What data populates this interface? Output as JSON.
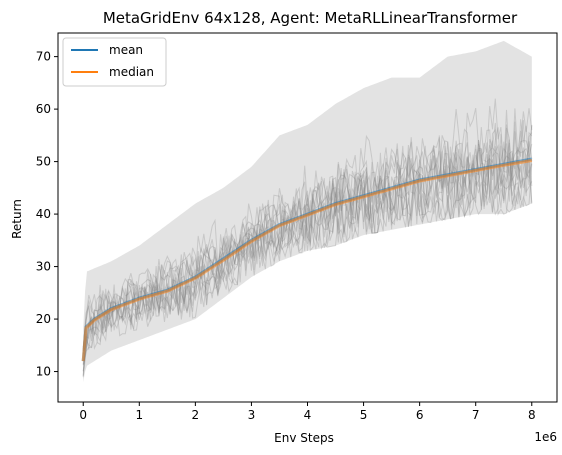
{
  "chart_data": {
    "type": "line",
    "title": "MetaGridEnv 64x128, Agent: MetaRLLinearTransformer",
    "xlabel": "Env Steps",
    "ylabel": "Return",
    "x_scale_label": "1e6",
    "xlim": [
      -0.45,
      8.45
    ],
    "ylim": [
      4.2,
      74.5
    ],
    "x_ticks": [
      0,
      1,
      2,
      3,
      4,
      5,
      6,
      7,
      8
    ],
    "x_tick_labels": [
      "0",
      "1",
      "2",
      "3",
      "4",
      "5",
      "6",
      "7",
      "8"
    ],
    "y_ticks": [
      10,
      20,
      30,
      40,
      50,
      60,
      70
    ],
    "y_tick_labels": [
      "10",
      "20",
      "30",
      "40",
      "50",
      "60",
      "70"
    ],
    "grid": false,
    "legend_position": "top-left",
    "background_band": {
      "name": "individual runs",
      "color": "#808080",
      "x": [
        0,
        0.05,
        0.5,
        1,
        1.5,
        2,
        2.5,
        3,
        3.5,
        4,
        4.5,
        5,
        5.5,
        6,
        6.5,
        7,
        7.5,
        8
      ],
      "low": [
        8,
        11,
        14,
        16,
        18,
        20,
        24,
        28,
        31,
        33,
        34,
        36,
        37,
        38,
        39,
        40,
        40,
        42
      ],
      "high": [
        18,
        29,
        31,
        34,
        38,
        42,
        45,
        49,
        55,
        57,
        61,
        64,
        66,
        66,
        70,
        71,
        73,
        70
      ]
    },
    "series": [
      {
        "name": "mean",
        "color": "#1f77b4",
        "x": [
          0,
          0.05,
          0.2,
          0.5,
          1,
          1.5,
          2,
          2.5,
          3,
          3.5,
          4,
          4.5,
          5,
          5.5,
          6,
          6.5,
          7,
          7.5,
          8
        ],
        "y": [
          12,
          18.5,
          20,
          22,
          24,
          25.5,
          28,
          31.5,
          35,
          38,
          40,
          42,
          43.5,
          45,
          46.5,
          47.5,
          48.5,
          49.5,
          50.5
        ]
      },
      {
        "name": "median",
        "color": "#ff7f0e",
        "x": [
          0,
          0.05,
          0.2,
          0.5,
          1,
          1.5,
          2,
          2.5,
          3,
          3.5,
          4,
          4.5,
          5,
          5.5,
          6,
          6.5,
          7,
          7.5,
          8
        ],
        "y": [
          12,
          18.3,
          19.8,
          21.8,
          23.8,
          25.3,
          27.8,
          31.2,
          34.8,
          37.8,
          39.8,
          41.8,
          43.3,
          44.8,
          46.3,
          47.3,
          48.3,
          49.3,
          50.2
        ]
      }
    ]
  }
}
